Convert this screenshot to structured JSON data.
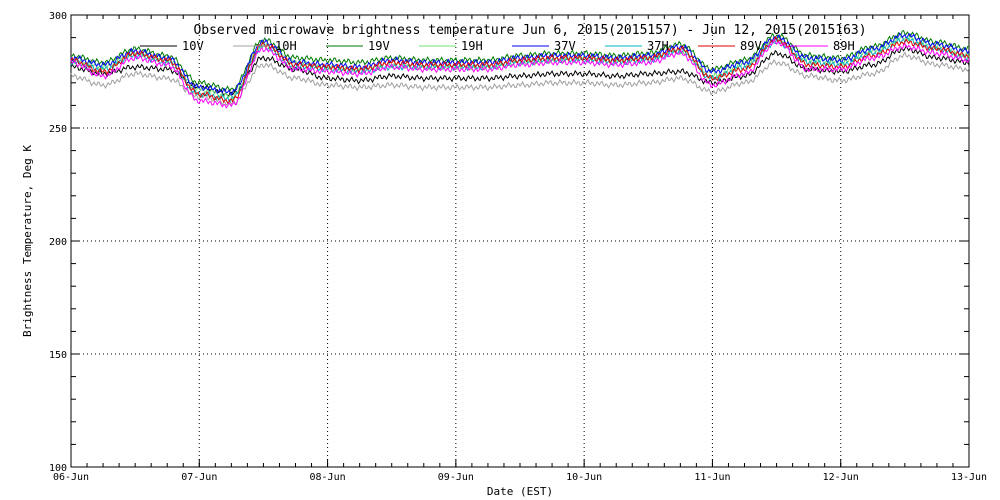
{
  "chart_data": {
    "type": "line",
    "title": "Observed microwave brightness temperature Jun  6, 2015(2015157) - Jun 12, 2015(2015163)",
    "xlabel": "Date (EST)",
    "ylabel": "Brightness Temperature, Deg K",
    "ylim": [
      100,
      300
    ],
    "yticks": [
      100,
      150,
      200,
      250,
      300
    ],
    "xlim": [
      0,
      7
    ],
    "xtick_positions": [
      0,
      1,
      2,
      3,
      4,
      5,
      6,
      7
    ],
    "xtick_labels": [
      "06-Jun",
      "07-Jun",
      "08-Jun",
      "09-Jun",
      "10-Jun",
      "11-Jun",
      "12-Jun",
      "13-Jun"
    ],
    "grid": true,
    "legend_position": "top",
    "x_unit": "days since 06-Jun 00:00 EST",
    "x": [
      0,
      0.25,
      0.5,
      0.75,
      1.0,
      1.25,
      1.5,
      1.75,
      2.0,
      2.25,
      2.5,
      2.75,
      3.0,
      3.25,
      3.5,
      3.75,
      4.0,
      4.25,
      4.5,
      4.75,
      5.0,
      5.25,
      5.5,
      5.75,
      6.0,
      6.25,
      6.5,
      6.75,
      7.0
    ],
    "series": [
      {
        "name": "10V",
        "color": "#000000",
        "values": [
          277,
          274,
          277,
          276,
          268,
          265,
          281,
          276,
          272,
          271,
          273,
          272,
          272,
          272,
          273,
          274,
          274,
          273,
          274,
          275,
          270,
          273,
          283,
          276,
          275,
          278,
          285,
          281,
          279
        ]
      },
      {
        "name": "10H",
        "color": "#a0a0a0",
        "values": [
          273,
          269,
          274,
          272,
          264,
          261,
          278,
          272,
          269,
          268,
          269,
          268,
          268,
          268,
          269,
          270,
          270,
          269,
          270,
          272,
          266,
          270,
          279,
          273,
          271,
          274,
          282,
          278,
          276
        ]
      },
      {
        "name": "19V",
        "color": "#007a00",
        "values": [
          282,
          279,
          285,
          282,
          270,
          267,
          289,
          281,
          280,
          279,
          281,
          280,
          280,
          280,
          282,
          283,
          283,
          282,
          283,
          287,
          276,
          280,
          291,
          282,
          281,
          286,
          292,
          288,
          285
        ]
      },
      {
        "name": "19H",
        "color": "#70e070",
        "values": [
          280,
          277,
          283,
          280,
          267,
          264,
          287,
          279,
          277,
          276,
          278,
          277,
          277,
          277,
          279,
          280,
          281,
          280,
          281,
          284,
          273,
          278,
          289,
          280,
          279,
          284,
          290,
          286,
          282
        ]
      },
      {
        "name": "37V",
        "color": "#0000ff",
        "values": [
          281,
          278,
          284,
          281,
          268,
          266,
          288,
          279,
          278,
          277,
          280,
          279,
          279,
          279,
          281,
          282,
          282,
          281,
          282,
          286,
          275,
          279,
          290,
          281,
          280,
          285,
          291,
          287,
          284
        ]
      },
      {
        "name": "37H",
        "color": "#00b0c0",
        "values": [
          279,
          276,
          282,
          279,
          265,
          263,
          286,
          277,
          276,
          275,
          277,
          277,
          277,
          277,
          279,
          280,
          280,
          279,
          280,
          284,
          272,
          277,
          288,
          279,
          278,
          283,
          289,
          285,
          281
        ]
      },
      {
        "name": "89V",
        "color": "#e00000",
        "values": [
          280,
          275,
          283,
          280,
          265,
          262,
          287,
          278,
          277,
          276,
          279,
          278,
          278,
          278,
          280,
          281,
          281,
          280,
          281,
          285,
          272,
          276,
          289,
          278,
          277,
          282,
          288,
          285,
          282
        ]
      },
      {
        "name": "89H",
        "color": "#ff00ff",
        "values": [
          279,
          273,
          281,
          278,
          262,
          260,
          285,
          276,
          275,
          274,
          277,
          276,
          276,
          276,
          278,
          279,
          279,
          278,
          279,
          283,
          269,
          274,
          288,
          276,
          276,
          281,
          286,
          283,
          280
        ]
      }
    ]
  }
}
